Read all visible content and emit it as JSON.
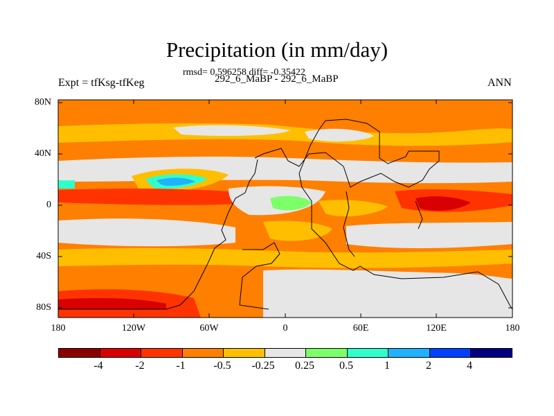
{
  "title": "Precipitation (in mm/day)",
  "stats_text": "rmsd= 0.596258 diff= -0.35422",
  "subtitle": "292_6_MaBP - 292_6_MaBP",
  "left_label": "Expt = tfKsg-tfKeg",
  "right_label": "ANN",
  "y_ticks": [
    "80N",
    "40N",
    "0",
    "40S",
    "80S"
  ],
  "x_ticks": [
    "180",
    "120W",
    "60W",
    "0",
    "60E",
    "120E",
    "180"
  ],
  "colorbar": {
    "colors": [
      "#8b0000",
      "#d80000",
      "#ff3300",
      "#ff7f00",
      "#ffbf00",
      "#e6e6e6",
      "#7dff6a",
      "#30ffcc",
      "#20b2ff",
      "#0040ff",
      "#000080"
    ],
    "labels": [
      "-4",
      "-2",
      "-1",
      "-0.5",
      "-0.25",
      "0.25",
      "0.5",
      "1",
      "2",
      "4"
    ]
  }
}
